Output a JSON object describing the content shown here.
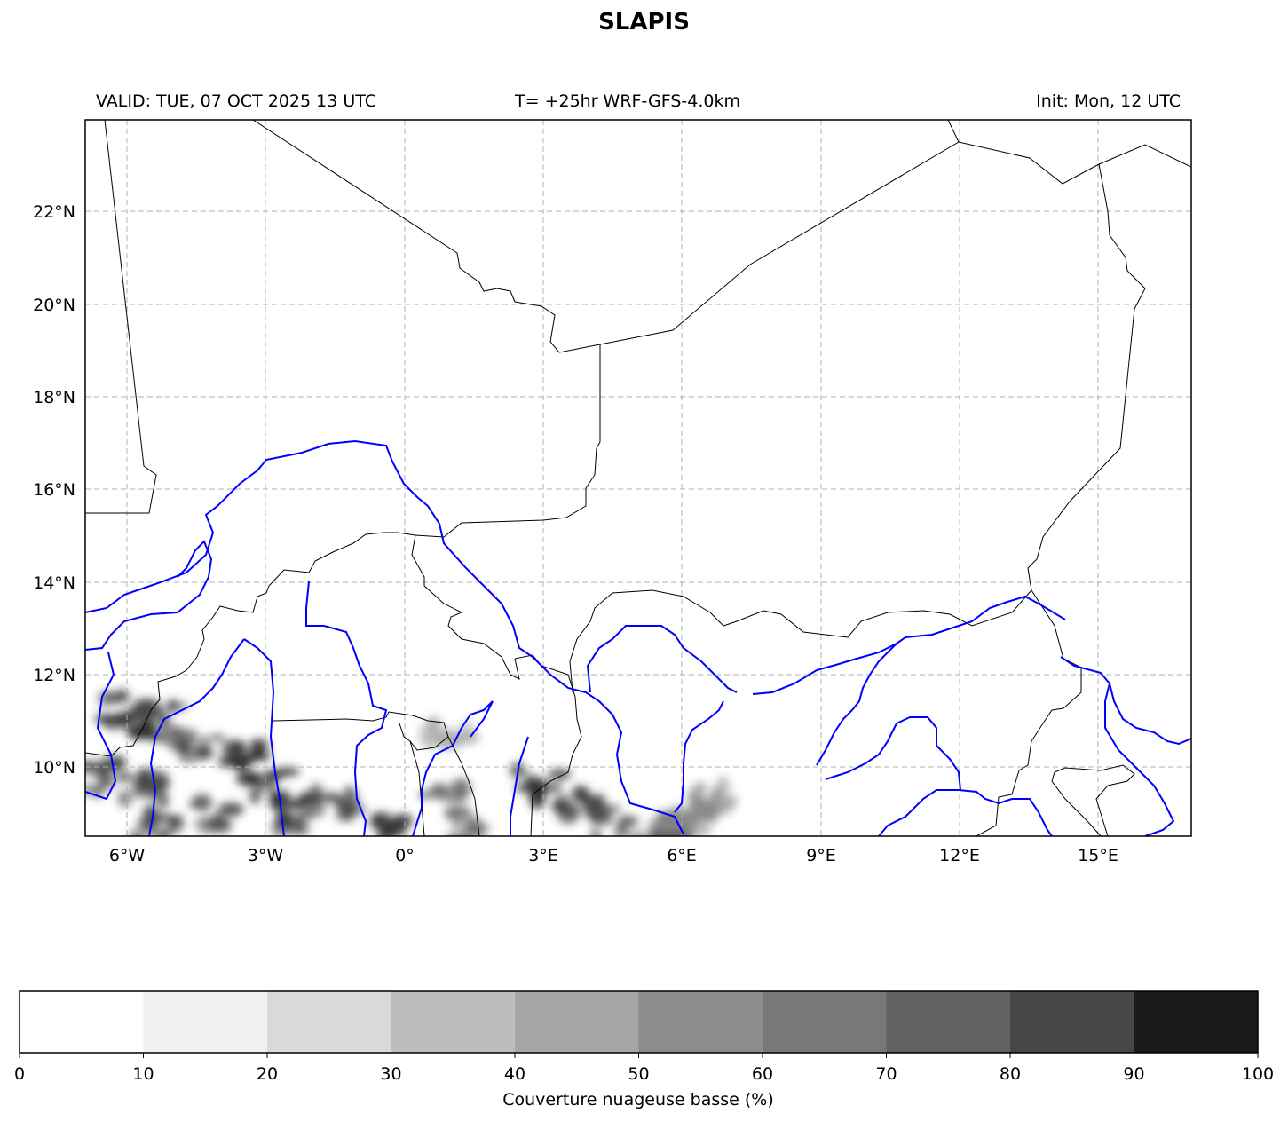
{
  "title": "SLAPIS",
  "subtitle_left": "VALID: TUE, 07 OCT 2025 13 UTC",
  "subtitle_center": "T= +25hr WRF-GFS-4.0km",
  "subtitle_right": "Init: Mon, 12 UTC",
  "map": {
    "lon_range": [
      -6.9,
      17.0
    ],
    "lat_range": [
      8.5,
      24.0
    ],
    "lon_ticks": [
      "6°W",
      "3°W",
      "0°",
      "3°E",
      "6°E",
      "9°E",
      "12°E",
      "15°E"
    ],
    "lat_ticks": [
      "22°N",
      "20°N",
      "18°N",
      "16°N",
      "14°N",
      "12°N",
      "10°N"
    ],
    "gridlines": true,
    "border_color": "#000000",
    "river_color": "#0000ff",
    "field": "low cloud cover",
    "cloud_clusters": [
      {
        "lon": -6.3,
        "lat": 11.2,
        "cover": 85
      },
      {
        "lon": -5.8,
        "lat": 10.8,
        "cover": 90
      },
      {
        "lon": -5.2,
        "lat": 11.1,
        "cover": 80
      },
      {
        "lon": -6.5,
        "lat": 9.8,
        "cover": 80
      },
      {
        "lon": -5.6,
        "lat": 9.6,
        "cover": 85
      },
      {
        "lon": -4.5,
        "lat": 10.5,
        "cover": 80
      },
      {
        "lon": -3.6,
        "lat": 10.2,
        "cover": 90
      },
      {
        "lon": -3.0,
        "lat": 9.6,
        "cover": 90
      },
      {
        "lon": -2.2,
        "lat": 9.0,
        "cover": 90
      },
      {
        "lon": -1.5,
        "lat": 9.3,
        "cover": 80
      },
      {
        "lon": -4.0,
        "lat": 8.9,
        "cover": 75
      },
      {
        "lon": -5.4,
        "lat": 8.8,
        "cover": 80
      },
      {
        "lon": -0.3,
        "lat": 8.7,
        "cover": 85
      },
      {
        "lon": 0.8,
        "lat": 9.3,
        "cover": 60
      },
      {
        "lon": 1.5,
        "lat": 8.6,
        "cover": 70
      },
      {
        "lon": 2.9,
        "lat": 9.6,
        "cover": 90
      },
      {
        "lon": 3.8,
        "lat": 9.1,
        "cover": 85
      },
      {
        "lon": 4.6,
        "lat": 8.8,
        "cover": 75
      },
      {
        "lon": 5.6,
        "lat": 8.7,
        "cover": 70
      },
      {
        "lon": 6.6,
        "lat": 9.4,
        "cover": 45
      },
      {
        "lon": 6.2,
        "lat": 8.9,
        "cover": 50
      },
      {
        "lon": 0.9,
        "lat": 10.6,
        "cover": 35
      }
    ]
  },
  "colorbar": {
    "label": "Couverture nuageuse basse (%)",
    "ticks": [
      "0",
      "10",
      "20",
      "30",
      "40",
      "50",
      "60",
      "70",
      "80",
      "90",
      "100"
    ],
    "colors": [
      "#ffffff",
      "#f0f0f0",
      "#d9d9d9",
      "#bdbdbd",
      "#a6a6a6",
      "#8c8c8c",
      "#787878",
      "#616161",
      "#474747",
      "#1a1a1a"
    ]
  }
}
